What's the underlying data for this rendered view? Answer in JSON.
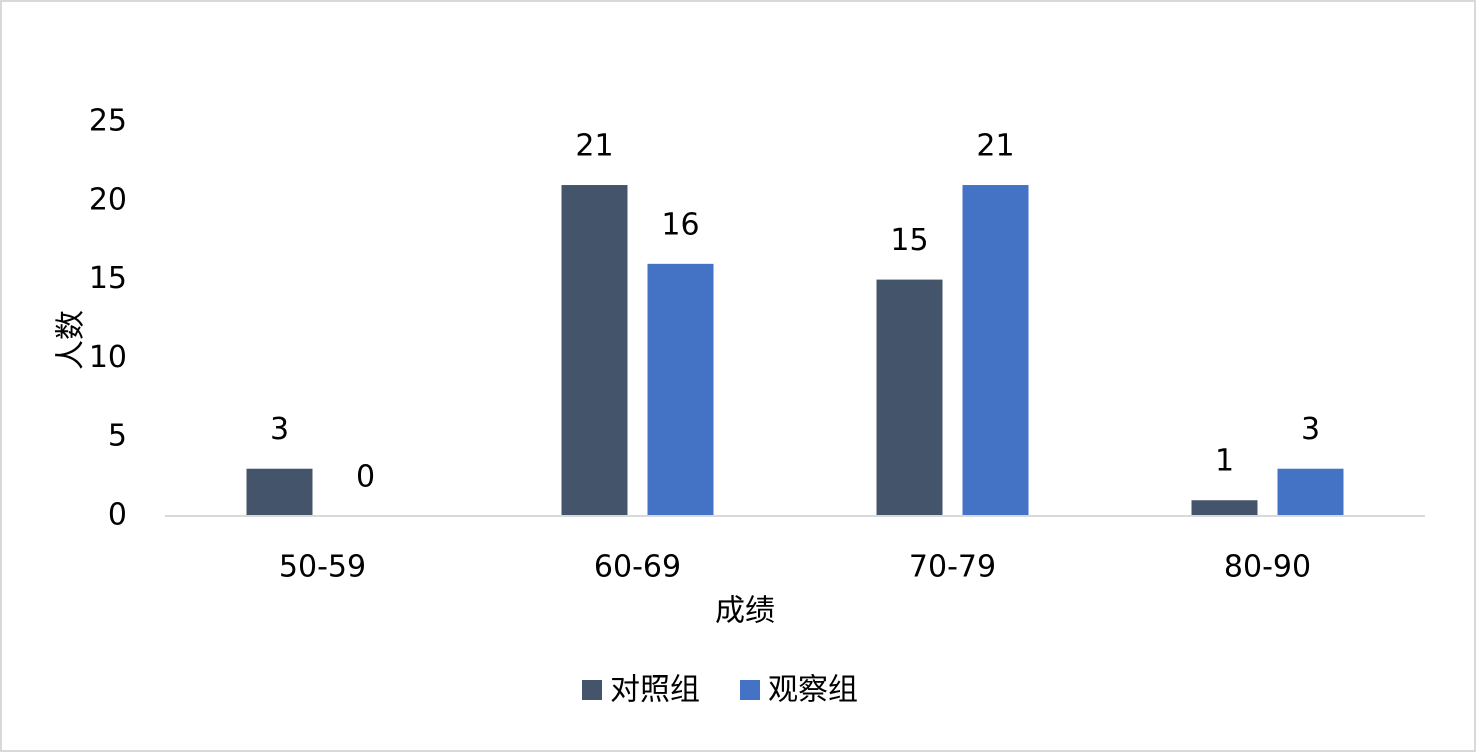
{
  "chart_data": {
    "type": "bar",
    "categories": [
      "50-59",
      "60-69",
      "70-79",
      "80-90"
    ],
    "series": [
      {
        "name": "对照组",
        "color": "#44546a",
        "values": [
          3,
          21,
          15,
          1
        ]
      },
      {
        "name": "观察组",
        "color": "#4472c4",
        "values": [
          0,
          16,
          21,
          3
        ]
      }
    ],
    "xlabel": "成绩",
    "ylabel": "人数",
    "ylim": [
      0,
      25
    ],
    "yticks": [
      0,
      5,
      10,
      15,
      20,
      25
    ],
    "grid": false,
    "legend": "bottom"
  }
}
